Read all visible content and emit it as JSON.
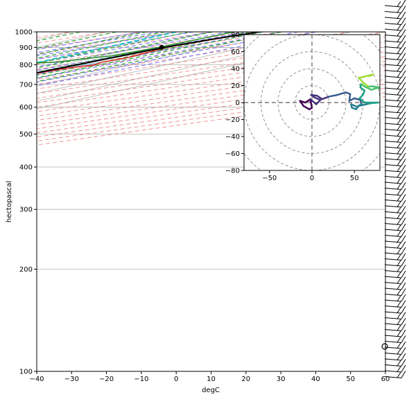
{
  "chart_data": [
    {
      "type": "line",
      "subtype": "skew-t-logp",
      "xlabel": "degC",
      "ylabel": "hectopascal",
      "xlim": [
        -40,
        60
      ],
      "ylim": [
        1000,
        100
      ],
      "y_scale": "log",
      "x_ticks": [
        -40,
        -30,
        -20,
        -10,
        0,
        10,
        20,
        30,
        40,
        50,
        60
      ],
      "y_ticks": [
        100,
        200,
        300,
        400,
        500,
        600,
        700,
        800,
        900,
        1000
      ],
      "grid": true,
      "colors": {
        "temperature": "#e0201b",
        "dewpoint": "#1f8a1f",
        "parcel": "#000000",
        "cape_fill": "#9ec4e0",
        "dry_adiabats": "#f08080",
        "moist_adiabats": "#6b6bf0",
        "mixing_ratio": "#2e9e2e",
        "zero_isotherm": "#1ec1c1",
        "isotherms": "#b0b0b0"
      },
      "series": [
        {
          "key": "temperature",
          "points": [
            [
              23.8,
              1000
            ],
            [
              22.5,
              980
            ],
            [
              21.0,
              960
            ],
            [
              19.8,
              940
            ],
            [
              18.5,
              920
            ],
            [
              17.5,
              900
            ],
            [
              18.5,
              870
            ],
            [
              19.5,
              840
            ],
            [
              18.0,
              815
            ],
            [
              19.5,
              798
            ],
            [
              17.8,
              793
            ],
            [
              15.5,
              780
            ],
            [
              13.5,
              750
            ],
            [
              12.0,
              720
            ],
            [
              10.0,
              690
            ],
            [
              9.5,
              675
            ],
            [
              7.5,
              645
            ],
            [
              5.0,
              600
            ],
            [
              3.0,
              570
            ],
            [
              1.0,
              550
            ],
            [
              -3.0,
              500
            ],
            [
              -8.0,
              450
            ],
            [
              -13.0,
              400
            ],
            [
              -16.0,
              370
            ],
            [
              -20.0,
              340
            ],
            [
              -25.0,
              310
            ],
            [
              -28.0,
              290
            ],
            [
              -31.5,
              270
            ],
            [
              -33.0,
              260
            ],
            [
              -32.0,
              250
            ],
            [
              -34.0,
              220
            ],
            [
              -36.5,
              185
            ],
            [
              -38.0,
              160
            ],
            [
              -39.5,
              140
            ],
            [
              -42.0,
              120
            ],
            [
              -44.0,
              110
            ],
            [
              -47.0,
              100
            ]
          ]
        },
        {
          "key": "dewpoint",
          "points": [
            [
              16.5,
              1000
            ],
            [
              16.0,
              960
            ],
            [
              15.5,
              920
            ],
            [
              15.0,
              900
            ],
            [
              12.5,
              850
            ],
            [
              5.0,
              815
            ],
            [
              -15.0,
              790
            ],
            [
              -10.0,
              770
            ],
            [
              -5.0,
              740
            ],
            [
              -9.0,
              700
            ],
            [
              -8.0,
              672
            ],
            [
              -18.0,
              645
            ],
            [
              -15.0,
              630
            ],
            [
              -32.0,
              620
            ],
            [
              -12.0,
              610
            ],
            [
              -38.0,
              600
            ],
            [
              -34.0,
              580
            ],
            [
              -58.0,
              560
            ],
            [
              -25.0,
              540
            ],
            [
              -25.0,
              480
            ],
            [
              -40.0,
              370
            ],
            [
              -52.0,
              330
            ],
            [
              -50.0,
              310
            ],
            [
              -53.0,
              290
            ],
            [
              -46.0,
              275
            ],
            [
              -42.0,
              265
            ],
            [
              -65.0,
              250
            ],
            [
              -60.0,
              200
            ],
            [
              -52.0,
              150
            ],
            [
              -51.0,
              140
            ],
            [
              -49.0,
              125
            ],
            [
              -45.0,
              105
            ],
            [
              -44.0,
              100
            ]
          ]
        },
        {
          "key": "parcel",
          "points": [
            [
              23.8,
              1000
            ],
            [
              19.8,
              950
            ],
            [
              17.2,
              910
            ],
            [
              16.0,
              870
            ],
            [
              14.3,
              800
            ],
            [
              11.5,
              700
            ],
            [
              8.1,
              600
            ],
            [
              2.8,
              500
            ],
            [
              -4.5,
              400
            ],
            [
              -14.5,
              300
            ],
            [
              -30.0,
              200
            ],
            [
              -36.0,
              175
            ],
            [
              -48.0,
              150
            ],
            [
              -61.0,
              125
            ]
          ]
        }
      ]
    },
    {
      "type": "line",
      "subtype": "hodograph",
      "xlim": [
        -80,
        80
      ],
      "ylim": [
        -80,
        80
      ],
      "x_ticks": [
        -50,
        0,
        50
      ],
      "y_ticks": [
        -80,
        -60,
        -40,
        -20,
        0,
        20,
        40,
        60,
        80
      ],
      "ring_spacing": 20,
      "points": [
        [
          0,
          2
        ],
        [
          -3,
          3
        ],
        [
          -8,
          0
        ],
        [
          -14,
          2
        ],
        [
          -10,
          -4
        ],
        [
          -3,
          -8
        ],
        [
          0,
          -6
        ],
        [
          -2,
          4
        ],
        [
          5,
          -2
        ],
        [
          10,
          3
        ],
        [
          3,
          6
        ],
        [
          -1,
          9
        ],
        [
          6,
          8
        ],
        [
          12,
          4
        ],
        [
          20,
          7
        ],
        [
          30,
          9
        ],
        [
          40,
          12
        ],
        [
          45,
          10
        ],
        [
          44,
          2
        ],
        [
          50,
          5
        ],
        [
          57,
          3
        ],
        [
          58,
          -2
        ],
        [
          53,
          -5
        ],
        [
          46,
          -2
        ],
        [
          47,
          -6
        ],
        [
          52,
          -8
        ],
        [
          55,
          -4
        ],
        [
          60,
          -3
        ],
        [
          68,
          -1
        ],
        [
          78,
          0
        ],
        [
          62,
          0
        ],
        [
          56,
          5
        ],
        [
          60,
          9
        ],
        [
          62,
          14
        ],
        [
          57,
          18
        ],
        [
          58,
          22
        ],
        [
          62,
          19
        ],
        [
          66,
          17
        ],
        [
          70,
          15
        ],
        [
          76,
          17
        ],
        [
          82,
          17
        ],
        [
          72,
          19
        ],
        [
          66,
          19
        ],
        [
          60,
          24
        ],
        [
          55,
          29
        ],
        [
          60,
          30
        ],
        [
          67,
          32
        ],
        [
          72,
          33
        ],
        [
          68,
          31
        ]
      ]
    }
  ]
}
